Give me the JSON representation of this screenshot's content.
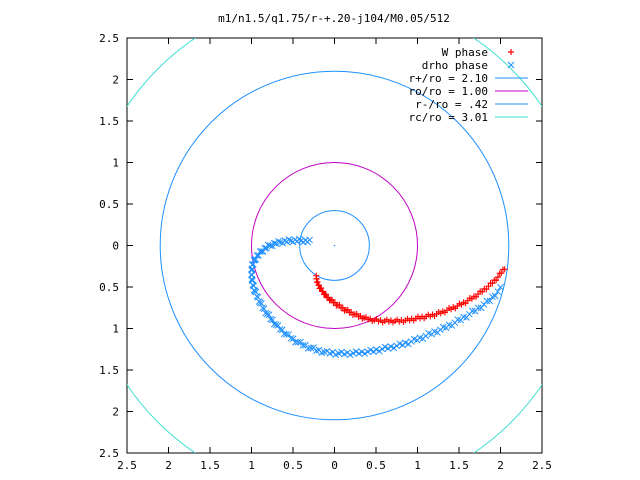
{
  "chart_data": {
    "type": "scatter",
    "title": "m1/n1.5/q1.75/r-+.20-j104/M0.05/512",
    "xlabel": "",
    "ylabel": "",
    "xlim": [
      -2.5,
      2.5
    ],
    "ylim": [
      -2.5,
      2.5
    ],
    "grid": false,
    "legend_position": "top-right",
    "x_ticks": [
      {
        "value": -2.5,
        "label": "2.5"
      },
      {
        "value": -2,
        "label": "2"
      },
      {
        "value": -1.5,
        "label": "1.5"
      },
      {
        "value": -1,
        "label": "1"
      },
      {
        "value": -0.5,
        "label": "0.5"
      },
      {
        "value": 0,
        "label": "0"
      },
      {
        "value": 0.5,
        "label": "0.5"
      },
      {
        "value": 1,
        "label": "1"
      },
      {
        "value": 1.5,
        "label": "1.5"
      },
      {
        "value": 2,
        "label": "2"
      },
      {
        "value": 2.5,
        "label": "2.5"
      }
    ],
    "y_ticks": [
      {
        "value": 2.5,
        "label": "2.5"
      },
      {
        "value": 2,
        "label": "2"
      },
      {
        "value": 1.5,
        "label": "1.5"
      },
      {
        "value": 1,
        "label": "1"
      },
      {
        "value": 0.5,
        "label": "0.5"
      },
      {
        "value": 0,
        "label": "0"
      },
      {
        "value": -0.5,
        "label": "0.5"
      },
      {
        "value": -1,
        "label": "1"
      },
      {
        "value": -1.5,
        "label": "1.5"
      },
      {
        "value": -2,
        "label": "2"
      },
      {
        "value": -2.5,
        "label": "2.5"
      }
    ],
    "series": [
      {
        "name": "W phase",
        "marker": "plus",
        "color": "#ff0000",
        "points": [
          [
            -0.22,
            -0.38
          ],
          [
            -0.21,
            -0.44
          ],
          [
            -0.18,
            -0.5
          ],
          [
            -0.14,
            -0.56
          ],
          [
            -0.09,
            -0.62
          ],
          [
            -0.03,
            -0.67
          ],
          [
            0.04,
            -0.72
          ],
          [
            0.12,
            -0.77
          ],
          [
            0.2,
            -0.81
          ],
          [
            0.29,
            -0.85
          ],
          [
            0.38,
            -0.88
          ],
          [
            0.48,
            -0.9
          ],
          [
            0.58,
            -0.91
          ],
          [
            0.68,
            -0.91
          ],
          [
            0.78,
            -0.91
          ],
          [
            0.88,
            -0.9
          ],
          [
            0.98,
            -0.88
          ],
          [
            1.08,
            -0.86
          ],
          [
            1.18,
            -0.84
          ],
          [
            1.28,
            -0.81
          ],
          [
            1.38,
            -0.77
          ],
          [
            1.48,
            -0.73
          ],
          [
            1.58,
            -0.68
          ],
          [
            1.68,
            -0.62
          ],
          [
            1.78,
            -0.55
          ],
          [
            1.88,
            -0.47
          ],
          [
            1.97,
            -0.38
          ],
          [
            2.05,
            -0.27
          ]
        ]
      },
      {
        "name": "drho phase",
        "marker": "cross",
        "color": "#1e90ff",
        "points": [
          [
            -0.3,
            0.05
          ],
          [
            -0.4,
            0.06
          ],
          [
            -0.5,
            0.06
          ],
          [
            -0.6,
            0.05
          ],
          [
            -0.7,
            0.03
          ],
          [
            -0.8,
            -0.01
          ],
          [
            -0.88,
            -0.07
          ],
          [
            -0.95,
            -0.15
          ],
          [
            -0.99,
            -0.24
          ],
          [
            -1.0,
            -0.34
          ],
          [
            -0.99,
            -0.44
          ],
          [
            -0.96,
            -0.55
          ],
          [
            -0.91,
            -0.66
          ],
          [
            -0.85,
            -0.77
          ],
          [
            -0.77,
            -0.88
          ],
          [
            -0.68,
            -0.98
          ],
          [
            -0.58,
            -1.07
          ],
          [
            -0.47,
            -1.15
          ],
          [
            -0.35,
            -1.21
          ],
          [
            -0.22,
            -1.26
          ],
          [
            -0.09,
            -1.29
          ],
          [
            0.05,
            -1.3
          ],
          [
            0.19,
            -1.3
          ],
          [
            0.33,
            -1.29
          ],
          [
            0.47,
            -1.27
          ],
          [
            0.61,
            -1.24
          ],
          [
            0.75,
            -1.21
          ],
          [
            0.89,
            -1.17
          ],
          [
            1.03,
            -1.12
          ],
          [
            1.17,
            -1.06
          ],
          [
            1.31,
            -1.0
          ],
          [
            1.45,
            -0.93
          ],
          [
            1.59,
            -0.85
          ],
          [
            1.73,
            -0.76
          ],
          [
            1.87,
            -0.66
          ],
          [
            2.0,
            -0.52
          ]
        ]
      },
      {
        "name": "r+/ro = 2.10",
        "type": "circle",
        "radius": 2.1,
        "color": "#1e90ff"
      },
      {
        "name": "ro/ro = 1.00",
        "type": "circle",
        "radius": 1.0,
        "color": "#c000c0"
      },
      {
        "name": "r-/ro = .42",
        "type": "circle",
        "radius": 0.42,
        "color": "#1e90ff"
      },
      {
        "name": "rc/ro = 3.01",
        "type": "circle",
        "radius": 3.01,
        "color": "#40e0d0"
      }
    ]
  }
}
